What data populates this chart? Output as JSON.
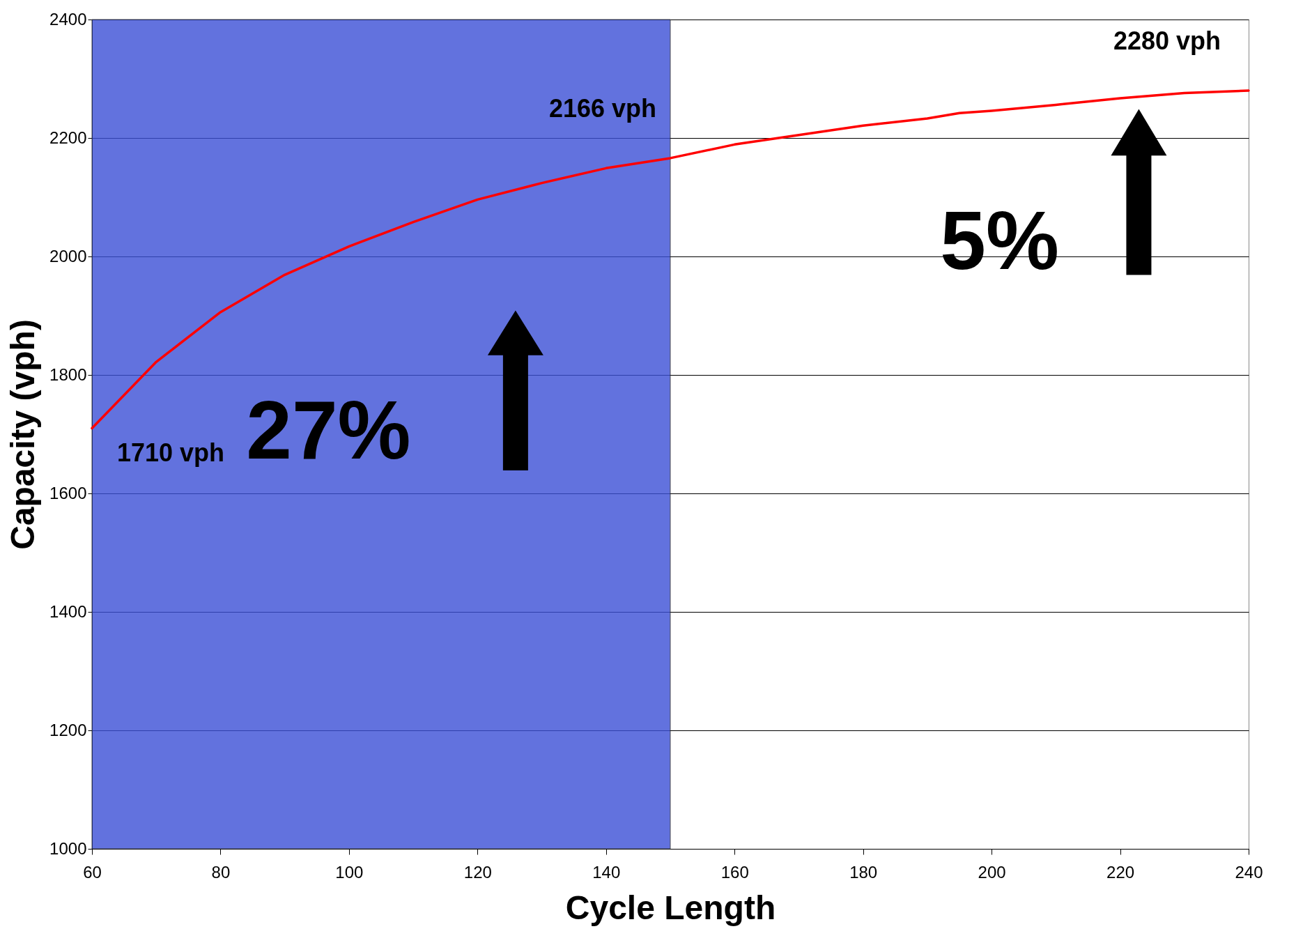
{
  "chart_data": {
    "type": "line",
    "xlabel": "Cycle Length",
    "ylabel": "Capacity (vph)",
    "x": [
      60,
      70,
      80,
      90,
      100,
      110,
      120,
      130,
      140,
      150,
      160,
      170,
      180,
      190,
      195,
      200,
      210,
      220,
      230,
      240
    ],
    "series": [
      {
        "color": "#ff0000",
        "values": [
          1710,
          1822,
          1906,
          1969,
          2017,
          2058,
          2096,
          2124,
          2149,
          2166,
          2189,
          2205,
          2221,
          2233,
          2242,
          2246,
          2256,
          2267,
          2276,
          2280
        ]
      }
    ],
    "xlim": [
      60,
      240
    ],
    "xticks": [
      60,
      80,
      100,
      120,
      140,
      160,
      180,
      200,
      220,
      240
    ],
    "ylim": [
      1000,
      2400
    ],
    "yticks": [
      1000,
      1200,
      1400,
      1600,
      1800,
      2000,
      2200,
      2400
    ],
    "grid": "y",
    "marker": "none",
    "line_style": "solid",
    "bands": [
      {
        "axis": "x",
        "from": 60,
        "to": 150,
        "color": "#3b50d6"
      }
    ],
    "annotations": [
      {
        "text": "1710 vph",
        "x": 60,
        "y": 1710
      },
      {
        "text": "2166 vph",
        "x": 150,
        "y": 2166
      },
      {
        "text": "2280 vph",
        "x": 240,
        "y": 2280
      },
      "27%",
      "5%"
    ]
  }
}
